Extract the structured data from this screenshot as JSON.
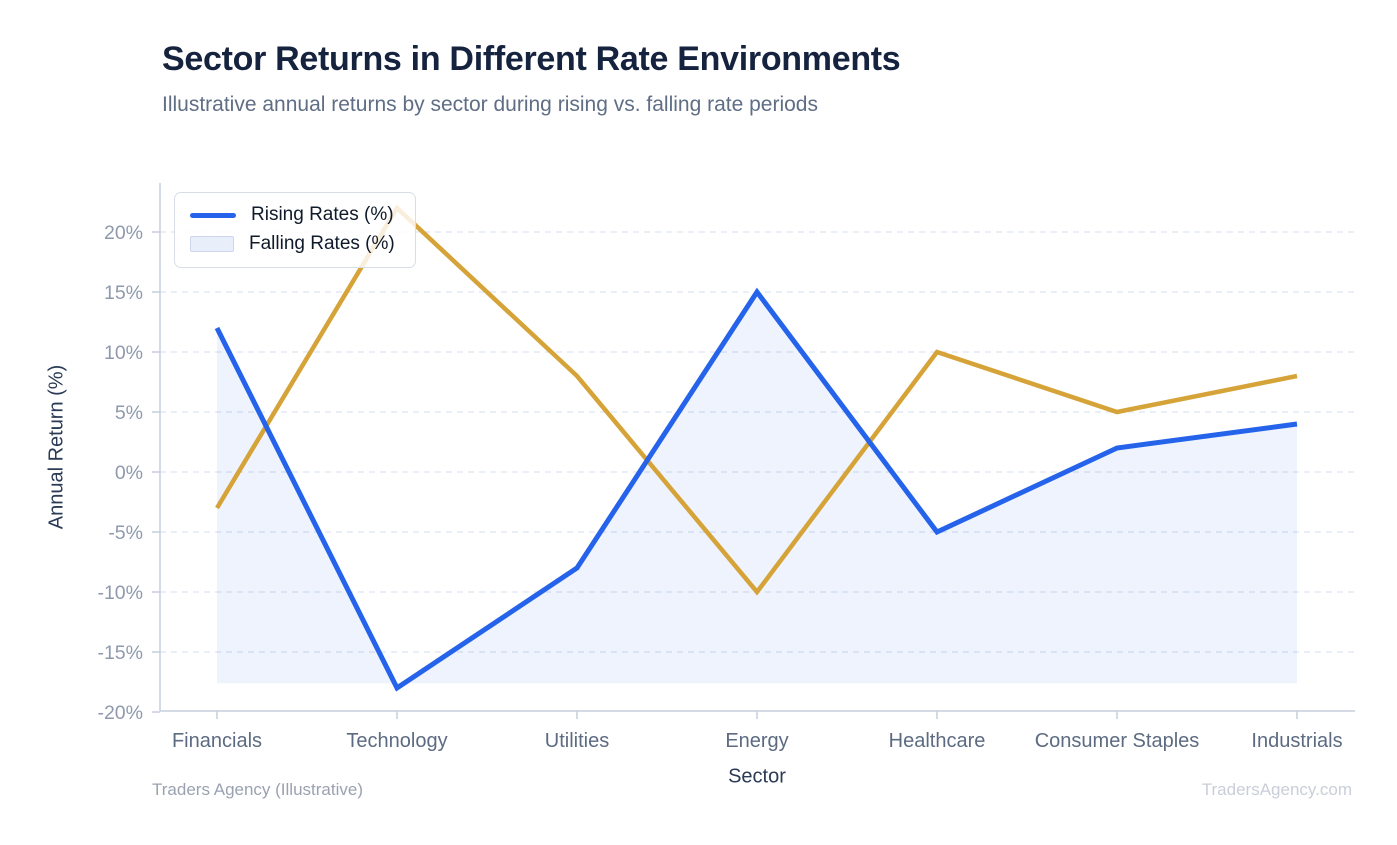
{
  "header": {
    "title": "Sector Returns in Different Rate Environments",
    "subtitle": "Illustrative annual returns by sector during rising vs. falling rate periods"
  },
  "legend": {
    "items": [
      {
        "key": "rising-rates",
        "label": "Rising Rates (%)",
        "swatch": "line",
        "color": "#2563eb"
      },
      {
        "key": "falling-rates",
        "label": "Falling Rates (%)",
        "swatch": "area",
        "color": "#e9eefb"
      }
    ]
  },
  "chart_data": {
    "type": "line",
    "title": "Sector Returns in Different Rate Environments",
    "xlabel": "Sector",
    "ylabel": "Annual Return (%)",
    "categories": [
      "Financials",
      "Technology",
      "Utilities",
      "Energy",
      "Healthcare",
      "Consumer Staples",
      "Industrials"
    ],
    "series": [
      {
        "key": "rising-rates",
        "name": "Rising Rates (%)",
        "values": [
          12,
          -18,
          -8,
          15,
          -5,
          2,
          4
        ],
        "color": "#2563eb",
        "width": 5
      },
      {
        "key": "falling-rates",
        "name": "Falling Rates (%)",
        "values": [
          -3,
          22,
          8,
          -10,
          10,
          5,
          8
        ],
        "color": "#d5a338",
        "width": 4.5
      }
    ],
    "area_fill": {
      "under_series": "rising-rates",
      "baseline": -17.6,
      "color": "rgba(37,99,235,0.08)"
    },
    "ylim": [
      -20,
      24
    ],
    "yticks": [
      20,
      15,
      10,
      5,
      0,
      -5,
      -10,
      -15,
      -20
    ],
    "ytick_suffix": "%",
    "grid": "horizontal-dashed",
    "legend_position": "top-left",
    "colors": {
      "gridline": "#dee4f0",
      "spine": "#c6cfdd",
      "tick": "#c6cfdd",
      "ytick_label": "#8e99ad",
      "xtick_label": "#5d6b82"
    }
  },
  "footer": {
    "left": "Traders Agency (Illustrative)",
    "right": "TradersAgency.com"
  }
}
